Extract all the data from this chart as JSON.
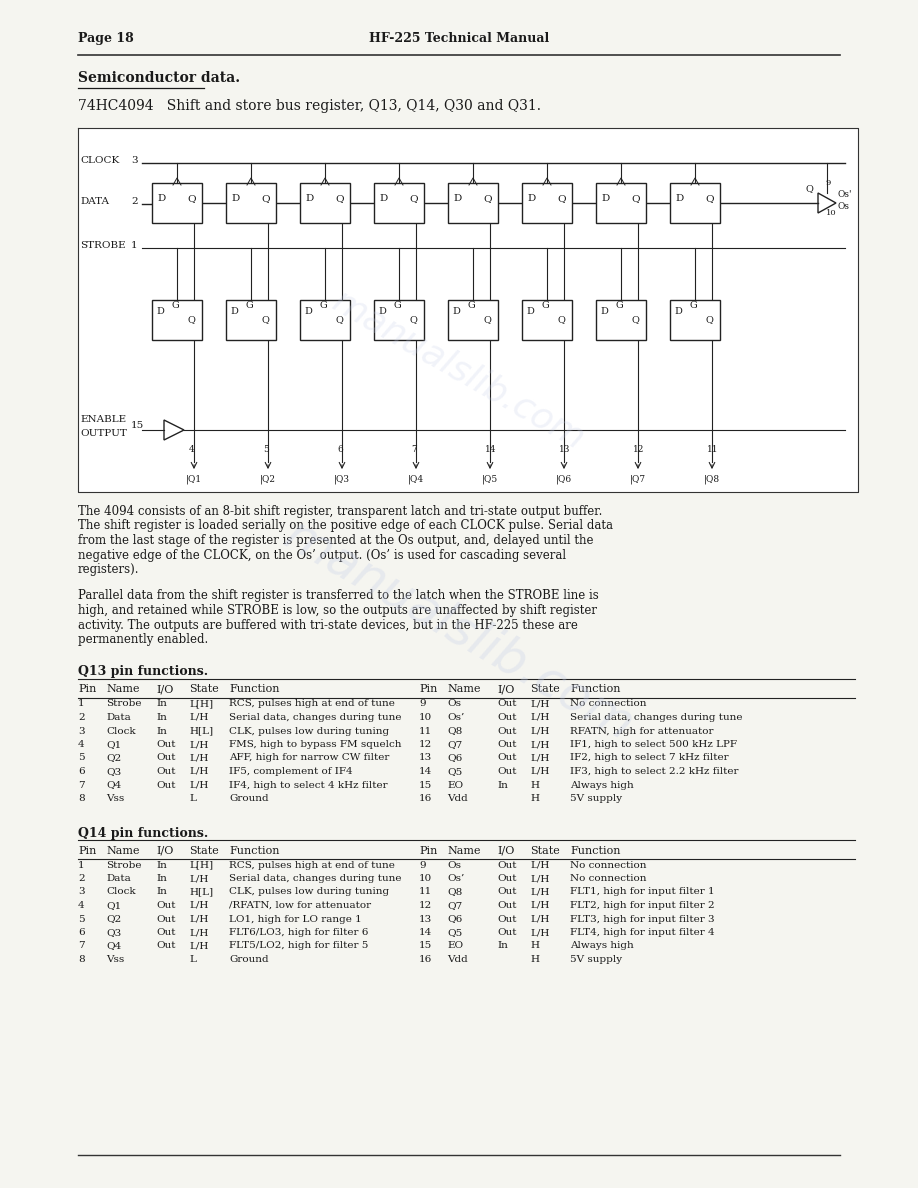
{
  "page_header_left": "Page 18",
  "page_header_center": "HF-225 Technical Manual",
  "section_title": "Semiconductor data.",
  "chip_title": "74HC4094   Shift and store bus register, Q13, Q14, Q30 and Q31.",
  "para1": "The 4094 consists of an 8-bit shift register, transparent latch and tri-state output buffer. The shift register is loaded serially on the positive edge of each CLOCK pulse. Serial data from the last stage of the register is presented at the Os output, and, delayed until the negative edge of the CLOCK, on the Os’ output. (Os’ is used for cascading several registers).",
  "para2": "Parallel data from the shift register is transferred to the latch when the STROBE line is high, and retained while STROBE is low, so the outputs are unaffected by shift register activity. The outputs are buffered with tri-state devices, but in the HF-225 these are permanently enabled.",
  "q13_title": "Q13 pin functions.",
  "q13_headers": [
    "Pin",
    "Name",
    "I/O",
    "State",
    "Function",
    "Pin",
    "Name",
    "I/O",
    "State",
    "Function"
  ],
  "q13_rows_left": [
    [
      "1",
      "Strobe",
      "In",
      "L[H]",
      "RCS, pulses high at end of tune"
    ],
    [
      "2",
      "Data",
      "In",
      "L/H",
      "Serial data, changes during tune"
    ],
    [
      "3",
      "Clock",
      "In",
      "H[L]",
      "CLK, pulses low during tuning"
    ],
    [
      "4",
      "Q1",
      "Out",
      "L/H",
      "FMS, high to bypass FM squelch"
    ],
    [
      "5",
      "Q2",
      "Out",
      "L/H",
      "AFF, high for narrow CW filter"
    ],
    [
      "6",
      "Q3",
      "Out",
      "L/H",
      "IF5, complement of IF4"
    ],
    [
      "7",
      "Q4",
      "Out",
      "L/H",
      "IF4, high to select 4 kHz filter"
    ],
    [
      "8",
      "Vss",
      "",
      "L",
      "Ground"
    ]
  ],
  "q13_rows_right": [
    [
      "9",
      "Os",
      "Out",
      "L/H",
      "No connection"
    ],
    [
      "10",
      "Os’",
      "Out",
      "L/H",
      "Serial data, changes during tune"
    ],
    [
      "11",
      "Q8",
      "Out",
      "L/H",
      "RFATN, high for attenuator"
    ],
    [
      "12",
      "Q7",
      "Out",
      "L/H",
      "IF1, high to select 500 kHz LPF"
    ],
    [
      "13",
      "Q6",
      "Out",
      "L/H",
      "IF2, high to select 7 kHz filter"
    ],
    [
      "14",
      "Q5",
      "Out",
      "L/H",
      "IF3, high to select 2.2 kHz filter"
    ],
    [
      "15",
      "EO",
      "In",
      "H",
      "Always high"
    ],
    [
      "16",
      "Vdd",
      "",
      "H",
      "5V supply"
    ]
  ],
  "q14_title": "Q14 pin functions.",
  "q14_headers": [
    "Pin",
    "Name",
    "I/O",
    "State",
    "Function",
    "Pin",
    "Name",
    "I/O",
    "State",
    "Function"
  ],
  "q14_rows_left": [
    [
      "1",
      "Strobe",
      "In",
      "L[H]",
      "RCS, pulses high at end of tune"
    ],
    [
      "2",
      "Data",
      "In",
      "L/H",
      "Serial data, changes during tune"
    ],
    [
      "3",
      "Clock",
      "In",
      "H[L]",
      "CLK, pulses low during tuning"
    ],
    [
      "4",
      "Q1",
      "Out",
      "L/H",
      "/RFATN, low for attenuator"
    ],
    [
      "5",
      "Q2",
      "Out",
      "L/H",
      "LO1, high for LO range 1"
    ],
    [
      "6",
      "Q3",
      "Out",
      "L/H",
      "FLT6/LO3, high for filter 6"
    ],
    [
      "7",
      "Q4",
      "Out",
      "L/H",
      "FLT5/LO2, high for filter 5"
    ],
    [
      "8",
      "Vss",
      "",
      "L",
      "Ground"
    ]
  ],
  "q14_rows_right": [
    [
      "9",
      "Os",
      "Out",
      "L/H",
      "No connection"
    ],
    [
      "10",
      "Os’",
      "Out",
      "L/H",
      "No connection"
    ],
    [
      "11",
      "Q8",
      "Out",
      "L/H",
      "FLT1, high for input filter 1"
    ],
    [
      "12",
      "Q7",
      "Out",
      "L/H",
      "FLT2, high for input filter 2"
    ],
    [
      "13",
      "Q6",
      "Out",
      "L/H",
      "FLT3, high for input filter 3"
    ],
    [
      "14",
      "Q5",
      "Out",
      "L/H",
      "FLT4, high for input filter 4"
    ],
    [
      "15",
      "EO",
      "In",
      "H",
      "Always high"
    ],
    [
      "16",
      "Vdd",
      "",
      "H",
      "5V supply"
    ]
  ],
  "bg_color": "#f5f5f0",
  "text_color": "#1a1a1a",
  "watermark_color": "#c8d0e8"
}
